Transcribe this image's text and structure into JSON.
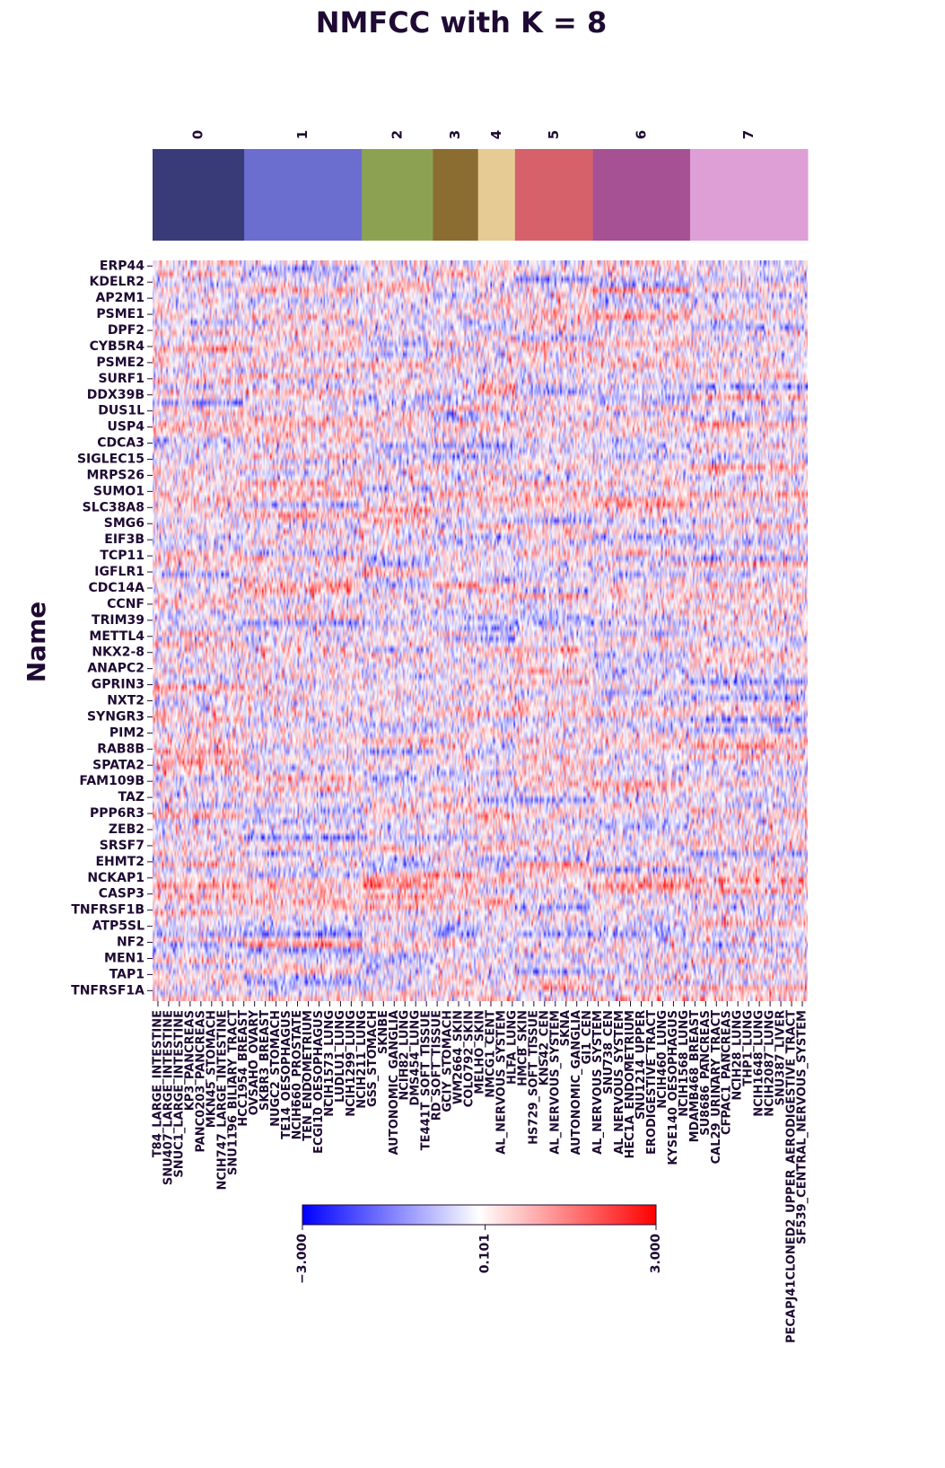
{
  "chart_data": {
    "type": "heatmap",
    "title": "NMFCC with K = 8",
    "ylabel": "Name",
    "xlabel": "",
    "color_scale": {
      "min": -3.0,
      "center": 0.101,
      "max": 3.0,
      "tick_labels": [
        "−3.000",
        "0.101",
        "3.000"
      ],
      "colormap": "bwr",
      "low_color": "#0000ff",
      "mid_color": "#ffffff",
      "high_color": "#ff0000"
    },
    "clusters": [
      {
        "label": "0",
        "color": "#393b79",
        "columns": 67
      },
      {
        "label": "1",
        "color": "#6b6ecf",
        "columns": 86
      },
      {
        "label": "2",
        "color": "#8ca252",
        "columns": 52
      },
      {
        "label": "3",
        "color": "#8c6d31",
        "columns": 33
      },
      {
        "label": "4",
        "color": "#e7cb94",
        "columns": 27
      },
      {
        "label": "5",
        "color": "#d6616b",
        "columns": 57
      },
      {
        "label": "6",
        "color": "#a55194",
        "columns": 71
      },
      {
        "label": "7",
        "color": "#de9ed6",
        "columns": 86
      }
    ],
    "row_labels": [
      "ERP44",
      "KDELR2",
      "AP2M1",
      "PSME1",
      "DPF2",
      "CYB5R4",
      "PSME2",
      "SURF1",
      "DDX39B",
      "DUS1L",
      "USP4",
      "CDCA3",
      "SIGLEC15",
      "MRPS26",
      "SUMO1",
      "SLC38A8",
      "SMG6",
      "EIF3B",
      "TCP11",
      "IGFLR1",
      "CDC14A",
      "CCNF",
      "TRIM39",
      "METTL4",
      "NKX2-8",
      "ANAPC2",
      "GPRIN3",
      "NXT2",
      "SYNGR3",
      "PIM2",
      "RAB8B",
      "SPATA2",
      "FAM109B",
      "TAZ",
      "PPP6R3",
      "ZEB2",
      "SRSF7",
      "EHMT2",
      "NCKAP1",
      "CASP3",
      "TNFRSF1B",
      "ATP5SL",
      "NF2",
      "MEN1",
      "TAP1",
      "TNFRSF1A"
    ],
    "column_labels": [
      "T84_LARGE_INTESTINE",
      "SNU407_LARGE_INTESTINE",
      "SNUC1_LARGE_INTESTINE",
      "KP3_PANCREAS",
      "PANC0203_PANCREAS",
      "MKN45_STOMACH",
      "NCIH747_LARGE_INTESTINE",
      "SNU1196_BILIARY_TRACT",
      "HCC1954_BREAST",
      "OVSAHO_OVARY",
      "SKBR3_BREAST",
      "NUGC2_STOMACH",
      "TE14_OESOPHAGUS",
      "NCIH660_PROSTATE",
      "TEN_ENDOMETRIUM",
      "ECGI10_OESOPHAGUS",
      "NCIH1573_LUNG",
      "LUDLU1_LUNG",
      "NCIH1299_LUNG",
      "NCIH211_LUNG",
      "GSS_STOMACH",
      "SKNBE2_AUTONOMIC_GANGLIA",
      "NCIH82_LUNG",
      "DMS454_LUNG",
      "TE441T_SOFT_TISSUE",
      "RD_SOFT_TISSUE",
      "GCIY_STOMACH",
      "WM2664_SKIN",
      "COLO792_SKIN",
      "MELHO_SKIN",
      "NMCG1_CENTRAL_NERVOUS_SYSTEM",
      "HLFA_LUNG",
      "HMCB_SKIN",
      "HS729_SOFT_TISSUE",
      "KNS42_CENTRAL_NERVOUS_SYSTEM",
      "SKNAS_AUTONOMIC_GANGLIA",
      "GI1_CENTRAL_NERVOUS_SYSTEM",
      "SNU738_CENTRAL_NERVOUS_SYSTEM",
      "HEC1A_ENDOMETRIUM",
      "SNU1214_UPPER_AERODIGESTIVE_TRACT",
      "NCIH460_LUNG",
      "KYSE140_OESOPHAGUS",
      "NCIH1568_LUNG",
      "MDAMB468_BREAST",
      "SU8686_PANCREAS",
      "CAL29_URINARY_TRACT",
      "CFPAC1_PANCREAS",
      "NCIH28_LUNG",
      "THP1_LUNG",
      "NCIH1648_LUNG",
      "NCIH2087_LUNG",
      "SNU387_LIVER",
      "PECAPJ41CLONED2_UPPER_AERODIGESTIVE_TRACT",
      "SF539_CENTRAL_NERVOUS_SYSTEM"
    ],
    "visible_column_labels": [
      "T84_LARGE_INTESTINE",
      "SNU407_LARGE_INTESTINE",
      "SNUC1_LARGE_INTESTINE",
      "KP3_PANCREAS",
      "PANC0203_PANCREAS",
      "MKN45_STOMACH",
      "NCIH747_LARGE_INTESTINE",
      "SNU1196_BILIARY_TRACT",
      "HCC1954_BREAST",
      "OVSAHO_OVARY",
      "SKBR3_BREAST",
      "NUGC2_STOMACH",
      "TE14_OESOPHAGUS",
      "NCIH660_PROSTATE",
      "TEN_ENDOMETRIUM",
      "ECGI10_OESOPHAGUS",
      "NCIH1573_LUNG",
      "LUDLU1_LUNG",
      "NCIH1299_LUNG",
      "NCIH211_LUNG",
      "GSS_STOMACH",
      "SKNBE",
      "AUTONOMIC_GANGLIA",
      "NCIH82_LUNG",
      "DMS454_LUNG",
      "TE441T_SOFT_TISSUE",
      "RD_SOFT_TISSUE",
      "GCIY_STOMACH",
      "WM2664_SKIN",
      "COLO792_SKIN",
      "MELHO_SKIN",
      "NMCG1_CENT",
      "AL_NERVOUS_SYSTEM",
      "HLFA_LUNG",
      "HMCB_SKIN",
      "HS729_SOFT_TISSUE",
      "KNS42_CEN",
      "AL_NERVOUS_SYSTEM",
      "SKNA",
      "AUTONOMIC_GANGLIA",
      "GI1_CEN",
      "AL_NERVOUS_SYSTEM",
      "SNU738_CEN",
      "AL_NERVOUS_SYSTEM",
      "HEC1A_ENDOMETRIUM",
      "SNU1214_UPPER",
      "ERODIGESTIVE_TRACT",
      "NCIH460_LUNG",
      "KYSE140_OESOPHAGUS",
      "NCIH1568_LUNG",
      "MDAMB468_BREAST",
      "SU8686_PANCREAS",
      "CAL29_URINARY_TRACT",
      "CFPAC1_PANCREAS",
      "NCIH28_LUNG",
      "THP1_LUNG",
      "NCIH1648_LUNG",
      "NCIH2087_LUNG",
      "SNU387_LIVER",
      "PECAPJ41CLONED2_UPPER_AERODIGESTIVE_TRACT",
      "SF539_CENTRAL_NERVOUS_SYSTEM"
    ],
    "matrix_shape": {
      "rows": 46,
      "columns": 479
    },
    "legend_placement": "bottom-center",
    "grid": false,
    "note_values": "cell values are dense standardized expression (approx. -3 to 3); rendered as a diverging blue-white-red field"
  }
}
